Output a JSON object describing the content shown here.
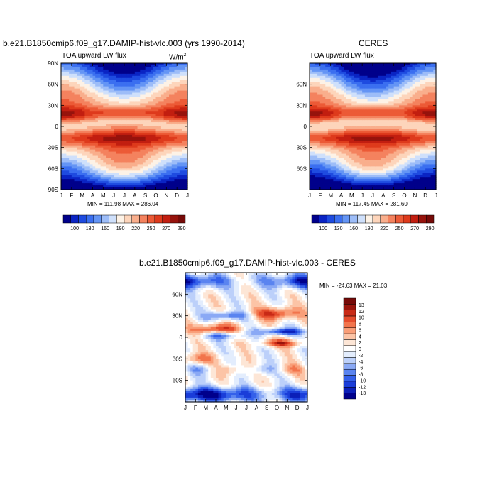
{
  "panel_a": {
    "title": "b.e21.B1850cmip6.f09_g17.DAMIP-hist-vlc.003 (yrs 1990-2014)",
    "left_label": "TOA upward LW flux",
    "units": "W/m",
    "units_sup": "2",
    "minmax": "MIN = 111.98 MAX = 286.04"
  },
  "panel_b": {
    "title": "CERES",
    "left_label": "TOA upward LW flux",
    "minmax": "MIN = 117.45 MAX = 281.60"
  },
  "panel_c": {
    "title": "b.e21.B1850cmip6.f09_g17.DAMIP-hist-vlc.003 - CERES",
    "minmax": "MIN = -24.63 MAX =  21.03"
  },
  "colors": {
    "abs_scale": [
      "#00008b",
      "#0a24c4",
      "#1e4be0",
      "#3b6ff0",
      "#6495f5",
      "#9dbdf8",
      "#cfe0fb",
      "#fdf2e6",
      "#fdd5bb",
      "#f9ae8c",
      "#f4825e",
      "#ec5a36",
      "#de3a1c",
      "#c21e10",
      "#96130c",
      "#760a08"
    ],
    "diff_scale": [
      "#00008b",
      "#0b1fb8",
      "#1a3dd9",
      "#3460ea",
      "#5a84f0",
      "#8aa9f5",
      "#bcd0fa",
      "#e3edfd",
      "#ffffff",
      "#fde6d6",
      "#fcc4a6",
      "#f99e78",
      "#f2744c",
      "#e54c2c",
      "#c82a16",
      "#9a150c",
      "#760a08"
    ]
  },
  "chart_data": [
    {
      "type": "heatmap",
      "title": "b.e21.B1850cmip6.f09_g17.DAMIP-hist-vlc.003 (yrs 1990-2014)",
      "left_label": "TOA upward LW flux",
      "units": "W/m2",
      "x_ticks": [
        "J",
        "F",
        "M",
        "A",
        "M",
        "J",
        "J",
        "A",
        "S",
        "O",
        "N",
        "D",
        "J"
      ],
      "y_ticks": [
        "90N",
        "60N",
        "30N",
        "0",
        "30S",
        "60S",
        "90S"
      ],
      "y_range": [
        -90,
        90
      ],
      "colorbar_labels": [
        "100",
        "130",
        "160",
        "190",
        "220",
        "250",
        "270",
        "290"
      ],
      "min": 111.98,
      "max": 286.04
    },
    {
      "type": "heatmap",
      "title": "CERES",
      "left_label": "TOA upward LW flux",
      "x_ticks": [
        "J",
        "F",
        "M",
        "A",
        "M",
        "J",
        "J",
        "A",
        "S",
        "O",
        "N",
        "D",
        "J"
      ],
      "y_ticks": [
        "60N",
        "30N",
        "0",
        "30S",
        "60S"
      ],
      "y_range": [
        -90,
        90
      ],
      "colorbar_labels": [
        "100",
        "130",
        "160",
        "190",
        "220",
        "250",
        "270",
        "290"
      ],
      "min": 117.45,
      "max": 281.6
    },
    {
      "type": "heatmap",
      "title": "b.e21.B1850cmip6.f09_g17.DAMIP-hist-vlc.003 - CERES",
      "x_ticks": [
        "J",
        "F",
        "M",
        "A",
        "M",
        "J",
        "J",
        "A",
        "S",
        "O",
        "N",
        "D",
        "J"
      ],
      "y_ticks": [
        "60N",
        "30N",
        "0",
        "30S",
        "60S"
      ],
      "y_range": [
        -90,
        90
      ],
      "colorbar_labels": [
        "13",
        "12",
        "10",
        "8",
        "6",
        "4",
        "2",
        "0",
        "-2",
        "-4",
        "-6",
        "-8",
        "-10",
        "-12",
        "-13"
      ],
      "min": -24.63,
      "max": 21.03
    }
  ]
}
